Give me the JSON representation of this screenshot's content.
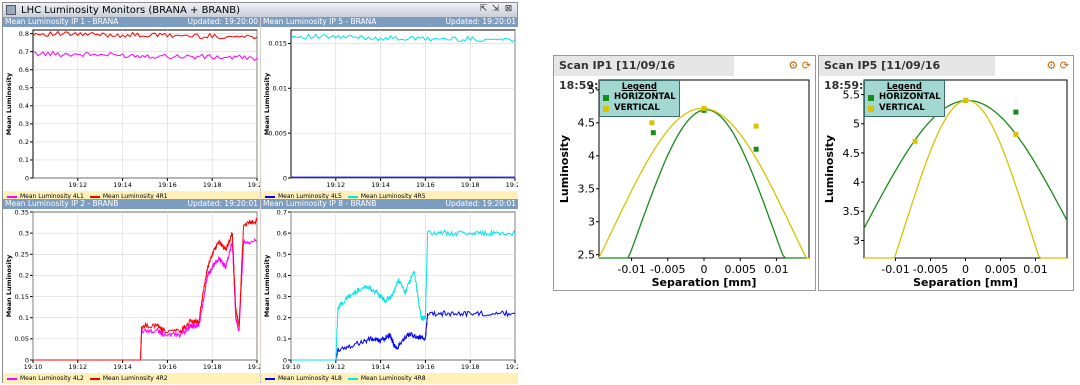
{
  "window": {
    "title": "LHC Luminosity Monitors (BRANA + BRANB)",
    "controls": [
      "⇱",
      "⇲",
      "⊠"
    ]
  },
  "panes": [
    {
      "id": "ip1",
      "title": "Mean Luminosity IP 1 - BRANA",
      "updated": "Updated: 19:20:00"
    },
    {
      "id": "ip5",
      "title": "Mean Luminosity IP 5 - BRANA",
      "updated": "Updated: 19:20:01"
    },
    {
      "id": "ip2",
      "title": "Mean Luminosity IP 2 - BRANB",
      "updated": "Updated: 19:20:01"
    },
    {
      "id": "ip8",
      "title": "Mean Luminosity IP 8 - BRANB",
      "updated": "Updated: 19:20:01"
    }
  ],
  "scans": [
    {
      "id": "scan1",
      "title": "Scan IP1  [11/09/16 18:59:16]",
      "legend_title": "Legend"
    },
    {
      "id": "scan5",
      "title": "Scan IP5  [11/09/16 18:59:16]",
      "legend_title": "Legend"
    }
  ],
  "chart_data": [
    {
      "id": "ip1",
      "type": "line",
      "ylabel": "Mean Luminosity",
      "xlim": [
        10,
        20
      ],
      "ylim": [
        0,
        0.82
      ],
      "xticks": [
        "19:12",
        "19:14",
        "19:16",
        "19:18",
        "19:20"
      ],
      "xtick_vals": [
        12,
        14,
        16,
        18,
        20
      ],
      "yticks": [
        "0",
        "0.1",
        "0.2",
        "0.3",
        "0.4",
        "0.5",
        "0.6",
        "0.7",
        "0.8"
      ],
      "ytick_vals": [
        0,
        0.1,
        0.2,
        0.3,
        0.4,
        0.5,
        0.6,
        0.7,
        0.8
      ],
      "legend_names": [
        "Mean Luminosity 4L1",
        "Mean Luminosity 4R1"
      ],
      "series": [
        {
          "name": "Mean Luminosity 4L1",
          "color": "#ff00ff",
          "x": [
            10,
            12,
            14,
            16,
            18,
            20
          ],
          "y": [
            0.69,
            0.685,
            0.68,
            0.675,
            0.67,
            0.665
          ]
        },
        {
          "name": "Mean Luminosity 4R1",
          "color": "#ff0000",
          "x": [
            10,
            12,
            14,
            16,
            18,
            20
          ],
          "y": [
            0.8,
            0.795,
            0.792,
            0.79,
            0.785,
            0.782
          ]
        }
      ]
    },
    {
      "id": "ip5",
      "type": "line",
      "ylabel": "Mean Luminosity",
      "xlim": [
        10,
        20
      ],
      "ylim": [
        0,
        0.0165
      ],
      "xticks": [
        "19:12",
        "19:14",
        "19:16",
        "19:18",
        "19:20"
      ],
      "xtick_vals": [
        12,
        14,
        16,
        18,
        20
      ],
      "yticks": [
        "0",
        "0.005",
        "0.01",
        "0.015"
      ],
      "ytick_vals": [
        0,
        0.005,
        0.01,
        0.015
      ],
      "legend_names": [
        "Mean Luminosity 4L5",
        "Mean Luminosity 4R5"
      ],
      "series": [
        {
          "name": "Mean Luminosity 4L5",
          "color": "#0000ff",
          "x": [
            10,
            12,
            14,
            16,
            18,
            20
          ],
          "y": [
            0.0001,
            0.0001,
            0.0001,
            0.0001,
            0.0001,
            0.0001
          ]
        },
        {
          "name": "Mean Luminosity 4R5",
          "color": "#00e5e5",
          "x": [
            10,
            12,
            14,
            16,
            18,
            20
          ],
          "y": [
            0.0158,
            0.0157,
            0.0156,
            0.0155,
            0.0155,
            0.0154
          ]
        }
      ]
    },
    {
      "id": "ip2",
      "type": "line",
      "ylabel": "Mean Luminosity",
      "xlim": [
        10,
        20
      ],
      "ylim": [
        0,
        0.35
      ],
      "xticks": [
        "19:10",
        "19:12",
        "19:14",
        "19:16",
        "19:18",
        "19:20"
      ],
      "xtick_vals": [
        10,
        12,
        14,
        16,
        18,
        20
      ],
      "yticks": [
        "0",
        "0.05",
        "0.1",
        "0.15",
        "0.2",
        "0.25",
        "0.3",
        "0.35"
      ],
      "ytick_vals": [
        0,
        0.05,
        0.1,
        0.15,
        0.2,
        0.25,
        0.3,
        0.35
      ],
      "legend_names": [
        "Mean Luminosity 4L2",
        "Mean Luminosity 4R2"
      ],
      "series": [
        {
          "name": "Mean Luminosity 4L2",
          "color": "#ff00ff",
          "x": [
            10,
            14.8,
            14.85,
            15.6,
            15.8,
            16.6,
            17.0,
            17.4,
            17.6,
            17.8,
            18.0,
            18.3,
            18.6,
            18.9,
            19.05,
            19.2,
            19.4,
            20
          ],
          "y": [
            0,
            0,
            0.07,
            0.07,
            0.06,
            0.06,
            0.08,
            0.08,
            0.14,
            0.2,
            0.22,
            0.24,
            0.22,
            0.28,
            0.1,
            0.07,
            0.28,
            0.28
          ]
        },
        {
          "name": "Mean Luminosity 4R2",
          "color": "#ff0000",
          "x": [
            10,
            14.8,
            14.85,
            15.6,
            15.8,
            16.6,
            17.0,
            17.4,
            17.6,
            17.8,
            18.0,
            18.3,
            18.6,
            18.9,
            19.05,
            19.2,
            19.4,
            20
          ],
          "y": [
            0,
            0,
            0.08,
            0.08,
            0.07,
            0.07,
            0.09,
            0.09,
            0.16,
            0.22,
            0.25,
            0.28,
            0.26,
            0.3,
            0.12,
            0.08,
            0.32,
            0.33
          ]
        }
      ]
    },
    {
      "id": "ip8",
      "type": "line",
      "ylabel": "Mean Luminosity",
      "xlim": [
        10,
        20
      ],
      "ylim": [
        0,
        0.7
      ],
      "xticks": [
        "19:10",
        "19:12",
        "19:14",
        "19:16",
        "19:18",
        "19:20"
      ],
      "xtick_vals": [
        10,
        12,
        14,
        16,
        18,
        20
      ],
      "yticks": [
        "0",
        "0.1",
        "0.2",
        "0.3",
        "0.4",
        "0.5",
        "0.6",
        "0.7"
      ],
      "ytick_vals": [
        0,
        0.1,
        0.2,
        0.3,
        0.4,
        0.5,
        0.6,
        0.7
      ],
      "legend_names": [
        "Mean Luminosity 4L8",
        "Mean Luminosity 4R8"
      ],
      "series": [
        {
          "name": "Mean Luminosity 4L8",
          "color": "#0000ff",
          "x": [
            10,
            12,
            12.1,
            13,
            13.6,
            14,
            14.4,
            14.7,
            15,
            15.3,
            15.7,
            16,
            16.1,
            17,
            18,
            19,
            20
          ],
          "y": [
            0,
            0,
            0.05,
            0.08,
            0.1,
            0.09,
            0.12,
            0.05,
            0.1,
            0.12,
            0.11,
            0.1,
            0.22,
            0.22,
            0.22,
            0.22,
            0.22
          ]
        },
        {
          "name": "Mean Luminosity 4R8",
          "color": "#00e5e5",
          "x": [
            10,
            12,
            12.1,
            12.6,
            13,
            13.4,
            13.8,
            14.2,
            14.5,
            14.8,
            15.1,
            15.5,
            15.8,
            16,
            16.1,
            17,
            18,
            19,
            20
          ],
          "y": [
            0,
            0,
            0.25,
            0.3,
            0.33,
            0.35,
            0.32,
            0.28,
            0.3,
            0.38,
            0.32,
            0.42,
            0.2,
            0.2,
            0.6,
            0.6,
            0.6,
            0.6,
            0.6
          ]
        }
      ]
    },
    {
      "id": "scan1",
      "type": "scatter",
      "xlabel": "Separation [mm]",
      "ylabel": "Luminosity",
      "xlim": [
        -0.0145,
        0.0145
      ],
      "ylim": [
        2.45,
        5.15
      ],
      "xticks": [
        "-0.01",
        "-0.005",
        "0",
        "0.005",
        "0.01"
      ],
      "xtick_vals": [
        -0.01,
        -0.005,
        0,
        0.005,
        0.01
      ],
      "yticks": [
        "2.5",
        "3",
        "3.5",
        "4",
        "4.5",
        "5"
      ],
      "ytick_vals": [
        2.5,
        3,
        3.5,
        4,
        4.5,
        5
      ],
      "legend_names": [
        "HORIZONTAL",
        "VERTICAL"
      ],
      "series": [
        {
          "name": "HORIZONTAL",
          "color": "#1a8a1a",
          "x": [
            -0.007,
            0,
            0.0072
          ],
          "y": [
            4.35,
            4.69,
            4.1
          ],
          "fit": [
            4.7,
            0.0003,
            0.0094
          ]
        },
        {
          "name": "VERTICAL",
          "color": "#d6c400",
          "x": [
            -0.0072,
            0,
            0.0072
          ],
          "y": [
            4.5,
            4.72,
            4.45
          ],
          "fit": [
            4.72,
            -0.0002,
            0.0125
          ]
        }
      ]
    },
    {
      "id": "scan5",
      "type": "scatter",
      "xlabel": "Separation [mm]",
      "ylabel": "Luminosity",
      "xlim": [
        -0.0145,
        0.0145
      ],
      "ylim": [
        2.7,
        5.75
      ],
      "xticks": [
        "-0.01",
        "-0.005",
        "0",
        "0.005",
        "0.01"
      ],
      "xtick_vals": [
        -0.01,
        -0.005,
        0,
        0.005,
        0.01
      ],
      "yticks": [
        "3",
        "3.5",
        "4",
        "4.5",
        "5",
        "5.5"
      ],
      "ytick_vals": [
        3,
        3.5,
        4,
        4.5,
        5,
        5.5
      ],
      "legend_names": [
        "HORIZONTAL",
        "VERTICAL"
      ],
      "series": [
        {
          "name": "HORIZONTAL",
          "color": "#1a8a1a",
          "x": [
            -0.0072,
            0,
            0.0072
          ],
          "y": [
            5.18,
            5.4,
            5.2
          ],
          "fit": [
            5.4,
            0.0003,
            0.0145
          ]
        },
        {
          "name": "VERTICAL",
          "color": "#d6c400",
          "x": [
            -0.0072,
            0,
            0.0072
          ],
          "y": [
            4.7,
            5.4,
            4.82
          ],
          "fit": [
            5.4,
            0.0002,
            0.0088
          ]
        }
      ]
    }
  ]
}
